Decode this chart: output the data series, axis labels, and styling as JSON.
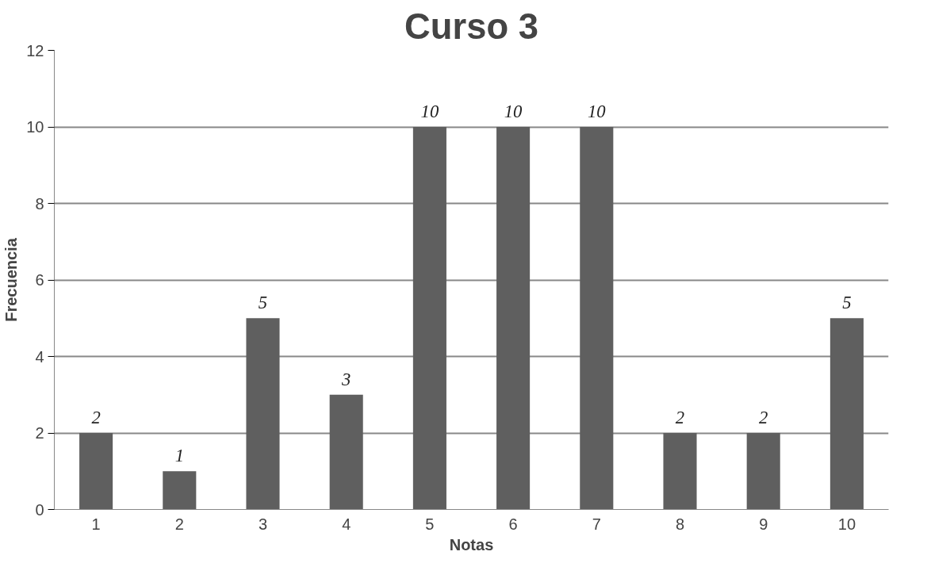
{
  "chart_data": {
    "type": "bar",
    "title": "Curso 3",
    "xlabel": "Notas",
    "ylabel": "Frecuencia",
    "categories": [
      "1",
      "2",
      "3",
      "4",
      "5",
      "6",
      "7",
      "8",
      "9",
      "10"
    ],
    "values": [
      2,
      1,
      5,
      3,
      10,
      10,
      10,
      2,
      2,
      5
    ],
    "color": "#5f5f5f",
    "ylim": [
      0,
      12
    ],
    "yticks": [
      0,
      2,
      4,
      6,
      8,
      10,
      12
    ],
    "grid": "y",
    "data_labels": true
  }
}
